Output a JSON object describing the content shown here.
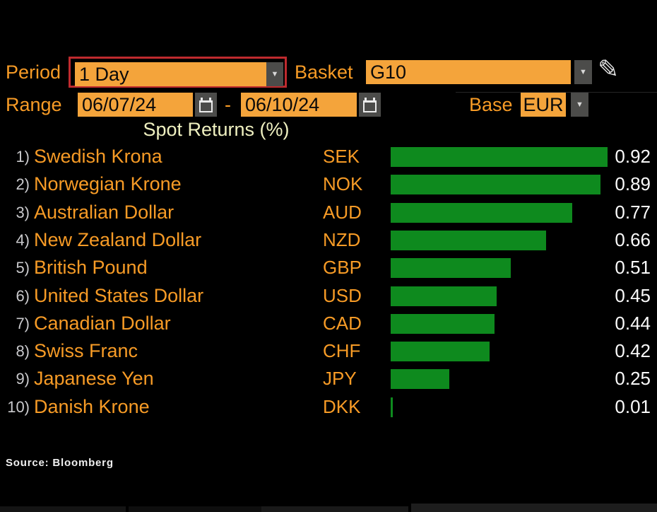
{
  "controls": {
    "period": {
      "label": "Period",
      "value": "1 Day",
      "highlighted": true
    },
    "basket": {
      "label": "Basket",
      "value": "G10"
    },
    "range": {
      "label": "Range",
      "start_date": "06/07/24",
      "separator": "-",
      "end_date": "06/10/24"
    },
    "base": {
      "label": "Base",
      "value": "EUR"
    }
  },
  "icons": {
    "dropdown_arrow_glyph": "▼",
    "pencil_glyph": "✎"
  },
  "chart_data": {
    "type": "bar",
    "orientation": "horizontal",
    "title": "Spot Returns (%)",
    "unit": "%",
    "base_currency": "EUR",
    "xlim": [
      0,
      0.92
    ],
    "value_label_format": "0.00",
    "grid": false,
    "rows": [
      {
        "rank": "1)",
        "name": "Swedish Krona",
        "code": "SEK",
        "value": 0.92
      },
      {
        "rank": "2)",
        "name": "Norwegian Krone",
        "code": "NOK",
        "value": 0.89
      },
      {
        "rank": "3)",
        "name": "Australian Dollar",
        "code": "AUD",
        "value": 0.77
      },
      {
        "rank": "4)",
        "name": "New Zealand Dollar",
        "code": "NZD",
        "value": 0.66
      },
      {
        "rank": "5)",
        "name": "British Pound",
        "code": "GBP",
        "value": 0.51
      },
      {
        "rank": "6)",
        "name": "United States Dollar",
        "code": "USD",
        "value": 0.45
      },
      {
        "rank": "7)",
        "name": "Canadian Dollar",
        "code": "CAD",
        "value": 0.44
      },
      {
        "rank": "8)",
        "name": "Swiss Franc",
        "code": "CHF",
        "value": 0.42
      },
      {
        "rank": "9)",
        "name": "Japanese Yen",
        "code": "JPY",
        "value": 0.25
      },
      {
        "rank": "10)",
        "name": "Danish Krone",
        "code": "DKK",
        "value": 0.01
      }
    ]
  },
  "footer": {
    "source": "Source: Bloomberg"
  },
  "colors": {
    "accent_orange": "#f79b26",
    "field_orange": "#f4a43b",
    "bar_green": "#0e8a1e",
    "highlight_red": "#bf2a2e",
    "title_cream": "#eff0c0",
    "background": "#000000"
  }
}
